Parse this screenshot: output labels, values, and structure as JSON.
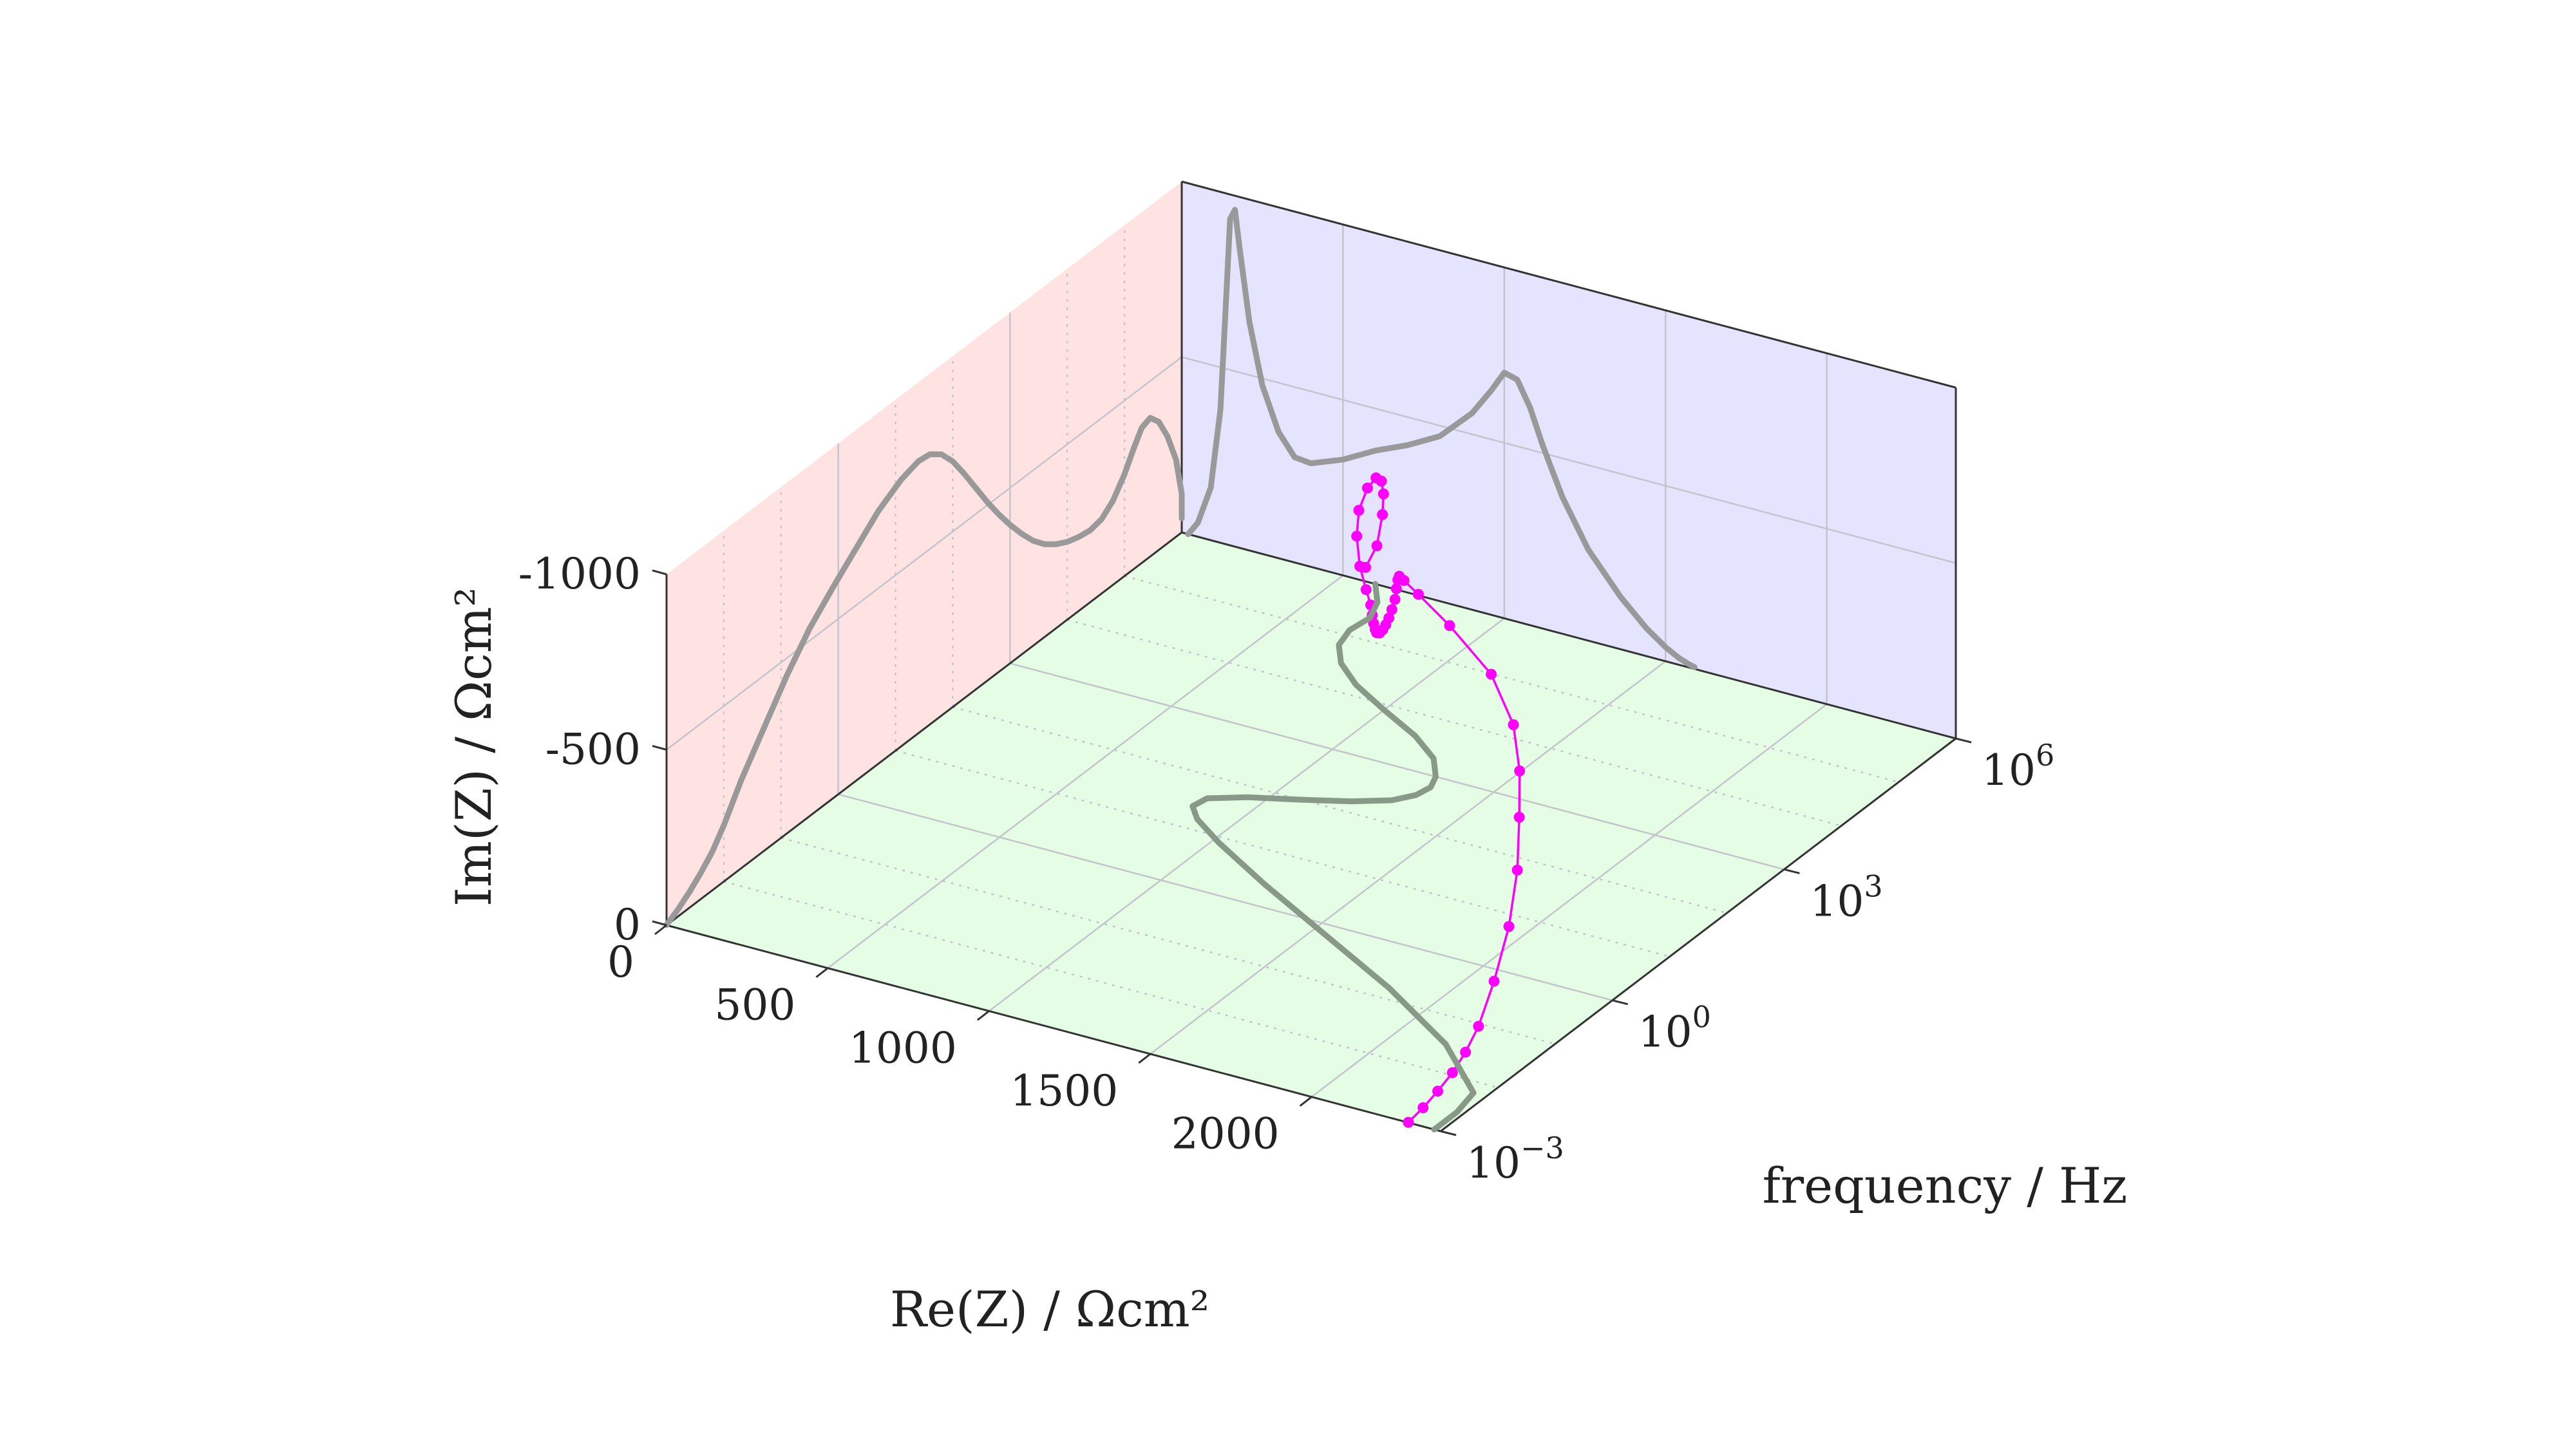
{
  "chart_data": {
    "type": "line",
    "projection": "3d",
    "axes": {
      "x": {
        "title": "Re(Z) / Ωcm²",
        "range": [
          0,
          2400
        ],
        "ticks": [
          {
            "value": 0,
            "label": "0"
          },
          {
            "value": 500,
            "label": "500"
          },
          {
            "value": 1000,
            "label": "1000"
          },
          {
            "value": 1500,
            "label": "1500"
          },
          {
            "value": 2000,
            "label": "2000"
          }
        ]
      },
      "y": {
        "title": "frequency / Hz",
        "scale": "log",
        "range": [
          -3,
          6
        ],
        "ticks": [
          {
            "value": -3,
            "base": "10",
            "exp": "−3"
          },
          {
            "value": 0,
            "base": "10",
            "exp": "0"
          },
          {
            "value": 3,
            "base": "10",
            "exp": "3"
          },
          {
            "value": 6,
            "base": "10",
            "exp": "6"
          }
        ]
      },
      "z": {
        "title": "Im(Z) / Ωcm²",
        "range": [
          0,
          -1000
        ],
        "ticks": [
          {
            "value": 0,
            "label": "0"
          },
          {
            "value": -500,
            "label": "-500"
          },
          {
            "value": -1000,
            "label": "-1000"
          }
        ]
      }
    },
    "grid": true,
    "wall_colors": {
      "back_wall": "#e4e4ff",
      "side_wall": "#ffe3e3",
      "floor": "#e4fde4"
    },
    "series": [
      {
        "role": "measured-3d",
        "color": "#ff00ff",
        "marker": "circle",
        "points": [
          [
            2300,
            -3.0,
            -1
          ],
          [
            2310,
            -2.8,
            -20
          ],
          [
            2320,
            -2.6,
            -45
          ],
          [
            2330,
            -2.4,
            -75
          ],
          [
            2335,
            -2.2,
            -110
          ],
          [
            2340,
            -2.0,
            -160
          ],
          [
            2335,
            -1.7,
            -250
          ],
          [
            2310,
            -1.3,
            -350
          ],
          [
            2265,
            -0.9,
            -450
          ],
          [
            2200,
            -0.5,
            -535
          ],
          [
            2130,
            -0.1,
            -600
          ],
          [
            2040,
            0.3,
            -660
          ],
          [
            1900,
            0.7,
            -720
          ],
          [
            1700,
            1.1,
            -760
          ],
          [
            1550,
            1.4,
            -775
          ],
          [
            1470,
            1.6,
            -770
          ],
          [
            1420,
            1.8,
            -745
          ],
          [
            1380,
            2.0,
            -700
          ],
          [
            1340,
            2.2,
            -640
          ],
          [
            1300,
            2.4,
            -575
          ],
          [
            1255,
            2.6,
            -510
          ],
          [
            1210,
            2.8,
            -450
          ],
          [
            1165,
            3.0,
            -395
          ],
          [
            1120,
            3.2,
            -345
          ],
          [
            1075,
            3.4,
            -300
          ],
          [
            1030,
            3.6,
            -265
          ],
          [
            990,
            3.8,
            -240
          ],
          [
            950,
            4.0,
            -222
          ],
          [
            910,
            4.2,
            -211
          ],
          [
            870,
            4.4,
            -205
          ],
          [
            820,
            4.6,
            -212
          ],
          [
            765,
            4.8,
            -240
          ],
          [
            720,
            5.0,
            -290
          ],
          [
            700,
            5.15,
            -340
          ],
          [
            700,
            5.3,
            -385
          ],
          [
            700,
            5.45,
            -395
          ],
          [
            690,
            5.6,
            -365
          ],
          [
            670,
            5.75,
            -305
          ],
          [
            640,
            5.9,
            -220
          ],
          [
            605,
            6.0,
            -110
          ],
          [
            570,
            6.0,
            -40
          ]
        ]
      },
      {
        "role": "projection-complex-plane",
        "color": "#999999",
        "points": [
          [
            20,
            0
          ],
          [
            50,
            -40
          ],
          [
            90,
            -150
          ],
          [
            120,
            -380
          ],
          [
            135,
            -650
          ],
          [
            150,
            -930
          ],
          [
            165,
            -960
          ],
          [
            180,
            -850
          ],
          [
            210,
            -650
          ],
          [
            250,
            -480
          ],
          [
            300,
            -360
          ],
          [
            350,
            -300
          ],
          [
            400,
            -295
          ],
          [
            500,
            -330
          ],
          [
            600,
            -380
          ],
          [
            700,
            -420
          ],
          [
            800,
            -470
          ],
          [
            900,
            -560
          ],
          [
            960,
            -640
          ],
          [
            1000,
            -700
          ],
          [
            1040,
            -690
          ],
          [
            1080,
            -620
          ],
          [
            1120,
            -520
          ],
          [
            1180,
            -390
          ],
          [
            1260,
            -260
          ],
          [
            1360,
            -150
          ],
          [
            1440,
            -80
          ],
          [
            1500,
            -40
          ],
          [
            1540,
            -20
          ],
          [
            1570,
            -10
          ],
          [
            1590,
            -5
          ]
        ]
      },
      {
        "role": "projection-bode",
        "color": "#999999",
        "points": [
          [
            -3.0,
            -1
          ],
          [
            -2.8,
            -20
          ],
          [
            -2.6,
            -45
          ],
          [
            -2.4,
            -75
          ],
          [
            -2.2,
            -110
          ],
          [
            -2.0,
            -160
          ],
          [
            -1.7,
            -250
          ],
          [
            -1.3,
            -350
          ],
          [
            -0.9,
            -450
          ],
          [
            -0.5,
            -535
          ],
          [
            -0.1,
            -600
          ],
          [
            0.3,
            -660
          ],
          [
            0.7,
            -720
          ],
          [
            1.1,
            -760
          ],
          [
            1.4,
            -775
          ],
          [
            1.6,
            -770
          ],
          [
            1.8,
            -745
          ],
          [
            2.0,
            -700
          ],
          [
            2.2,
            -640
          ],
          [
            2.4,
            -575
          ],
          [
            2.6,
            -510
          ],
          [
            2.8,
            -450
          ],
          [
            3.0,
            -395
          ],
          [
            3.2,
            -345
          ],
          [
            3.4,
            -300
          ],
          [
            3.6,
            -265
          ],
          [
            3.8,
            -240
          ],
          [
            4.0,
            -222
          ],
          [
            4.2,
            -211
          ],
          [
            4.4,
            -205
          ],
          [
            4.6,
            -212
          ],
          [
            4.8,
            -240
          ],
          [
            5.0,
            -290
          ],
          [
            5.15,
            -340
          ],
          [
            5.3,
            -385
          ],
          [
            5.45,
            -395
          ],
          [
            5.6,
            -365
          ],
          [
            5.75,
            -305
          ],
          [
            5.9,
            -220
          ],
          [
            6.0,
            -110
          ],
          [
            6.0,
            -40
          ]
        ]
      },
      {
        "role": "projection-re-vs-frequency",
        "color": "#889988",
        "points": [
          [
            2380,
            -3.0
          ],
          [
            2380,
            -2.6
          ],
          [
            2360,
            -2.2
          ],
          [
            2150,
            -1.5
          ],
          [
            1850,
            -0.8
          ],
          [
            1550,
            -0.2
          ],
          [
            1250,
            0.4
          ],
          [
            1020,
            0.9
          ],
          [
            900,
            1.2
          ],
          [
            850,
            1.4
          ],
          [
            860,
            1.6
          ],
          [
            950,
            1.8
          ],
          [
            1080,
            2.0
          ],
          [
            1200,
            2.2
          ],
          [
            1290,
            2.4
          ],
          [
            1330,
            2.6
          ],
          [
            1340,
            2.8
          ],
          [
            1320,
            3.0
          ],
          [
            1260,
            3.3
          ],
          [
            1150,
            3.6
          ],
          [
            1000,
            3.9
          ],
          [
            860,
            4.2
          ],
          [
            760,
            4.5
          ],
          [
            700,
            4.8
          ],
          [
            680,
            5.1
          ],
          [
            690,
            5.4
          ],
          [
            660,
            5.7
          ],
          [
            600,
            6.0
          ]
        ]
      }
    ]
  }
}
